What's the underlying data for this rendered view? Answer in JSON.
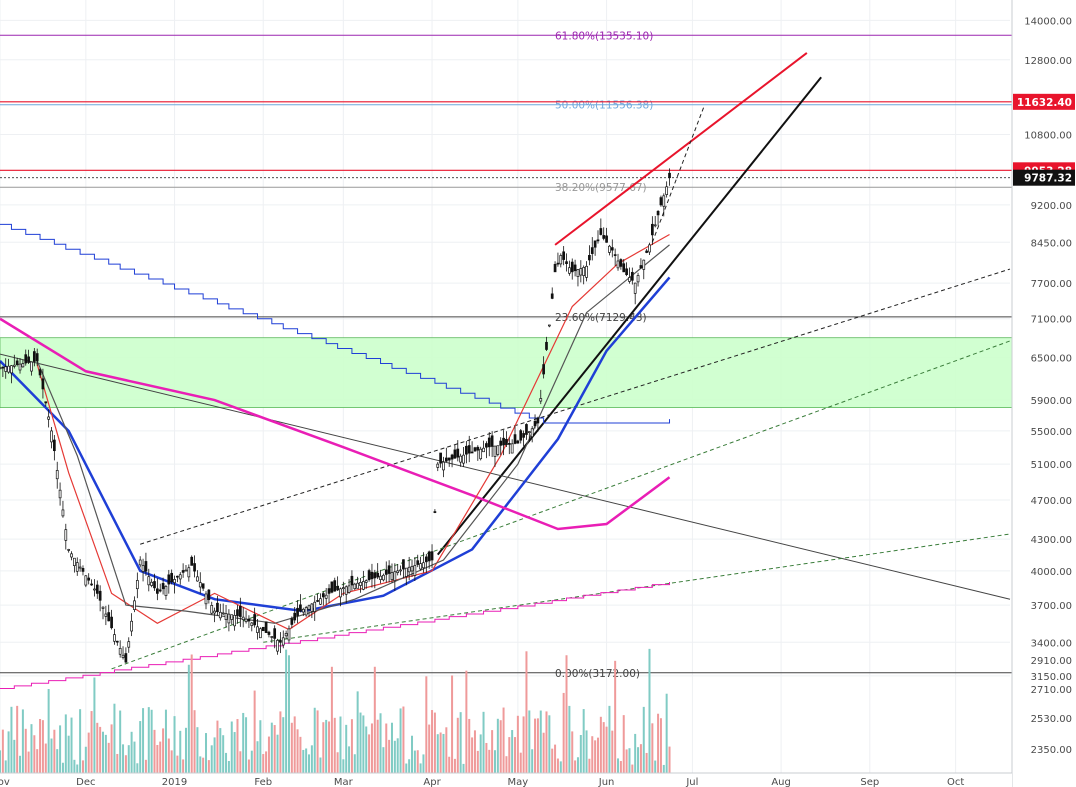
{
  "chart_data": {
    "type": "candlestick",
    "instrument": "BTC",
    "y_axis": {
      "ticks": [
        "14000.00",
        "12800.00",
        "11632.40",
        "10800.00",
        "9953.28",
        "9200.00",
        "8450.00",
        "7700.00",
        "7100.00",
        "6500.00",
        "5900.00",
        "5500.00",
        "5100.00",
        "4700.00",
        "4300.00",
        "4000.00",
        "3700.00",
        "3400.00",
        "3150.00",
        "2910.00",
        "2710.00",
        "2530.00",
        "2350.00"
      ],
      "tick_values": [
        14000,
        12800,
        10800,
        9200,
        8450,
        7700,
        7100,
        6500,
        5900,
        5500,
        5100,
        4700,
        4300,
        4000,
        3700,
        3400,
        3150
      ],
      "volume_tick_labels": [
        "2910.00",
        "2710.00",
        "2530.00",
        "2350.00"
      ],
      "range": [
        3050,
        14500
      ],
      "scale": "log"
    },
    "x_axis": {
      "labels": [
        "Nov",
        "Dec",
        "2019",
        "Feb",
        "Mar",
        "Apr",
        "May",
        "Jun",
        "Jul",
        "Aug",
        "Sep",
        "Oct"
      ],
      "date_range": [
        "2018-11-01",
        "2019-10-20"
      ]
    },
    "price_tags": [
      {
        "value": "11632.40",
        "color": "#e8142c"
      },
      {
        "value": "9953.28",
        "color": "#e8142c"
      },
      {
        "value": "9787.32",
        "color": "#111111"
      }
    ],
    "fibonacci_levels": [
      {
        "label": "61.80%(13535.10)",
        "ratio": 0.618,
        "price": 13535.1,
        "color": "#9c27b0"
      },
      {
        "label": "50.00%(11556.38)",
        "ratio": 0.5,
        "price": 11556.38,
        "color": "#6fa8dc"
      },
      {
        "label": "38.20%(9577.67)",
        "ratio": 0.382,
        "price": 9577.67,
        "color": "#999999"
      },
      {
        "label": "23.60%(7129.43)",
        "ratio": 0.236,
        "price": 7129.43,
        "color": "#444444"
      },
      {
        "label": "0.00%(3172.00)",
        "ratio": 0.0,
        "price": 3172.0,
        "color": "#444444"
      }
    ],
    "horizontal_lines": [
      {
        "price": 11632.4,
        "color": "#e8142c"
      },
      {
        "price": 9953.28,
        "color": "#e8142c"
      }
    ],
    "zone": {
      "from": 5800,
      "to": 6800,
      "color": "#ccffcc"
    },
    "price_path": [
      [
        "2018-11-01",
        6350
      ],
      [
        "2018-11-14",
        6450
      ],
      [
        "2018-11-19",
        5500
      ],
      [
        "2018-11-25",
        4200
      ],
      [
        "2018-12-05",
        3800
      ],
      [
        "2018-12-15",
        3250
      ],
      [
        "2018-12-20",
        4100
      ],
      [
        "2018-12-26",
        3800
      ],
      [
        "2019-01-07",
        4050
      ],
      [
        "2019-01-15",
        3650
      ],
      [
        "2019-01-25",
        3600
      ],
      [
        "2019-02-07",
        3400
      ],
      [
        "2019-02-14",
        3650
      ],
      [
        "2019-02-24",
        3800
      ],
      [
        "2019-03-01",
        3850
      ],
      [
        "2019-03-20",
        4000
      ],
      [
        "2019-04-01",
        4100
      ],
      [
        "2019-04-03",
        5100
      ],
      [
        "2019-04-20",
        5300
      ],
      [
        "2019-05-01",
        5350
      ],
      [
        "2019-05-08",
        5600
      ],
      [
        "2019-05-12",
        7000
      ],
      [
        "2019-05-14",
        7900
      ],
      [
        "2019-05-16",
        8200
      ],
      [
        "2019-05-20",
        7900
      ],
      [
        "2019-05-25",
        8000
      ],
      [
        "2019-05-30",
        8600
      ],
      [
        "2019-06-03",
        8300
      ],
      [
        "2019-06-07",
        7900
      ],
      [
        "2019-06-11",
        7700
      ],
      [
        "2019-06-16",
        8400
      ],
      [
        "2019-06-20",
        9200
      ],
      [
        "2019-06-23",
        9787
      ]
    ],
    "moving_averages": [
      {
        "color": "#1f3fd6",
        "points": [
          [
            "2018-11-01",
            6450
          ],
          [
            "2018-11-25",
            5500
          ],
          [
            "2018-12-20",
            4000
          ],
          [
            "2019-01-15",
            3750
          ],
          [
            "2019-02-15",
            3650
          ],
          [
            "2019-03-15",
            3780
          ],
          [
            "2019-04-15",
            4200
          ],
          [
            "2019-05-15",
            5400
          ],
          [
            "2019-06-01",
            6600
          ],
          [
            "2019-06-23",
            7800
          ]
        ]
      },
      {
        "color": "#e91eb5",
        "points": [
          [
            "2018-11-01",
            7100
          ],
          [
            "2018-12-01",
            6300
          ],
          [
            "2019-01-15",
            5900
          ],
          [
            "2019-03-01",
            5300
          ],
          [
            "2019-04-15",
            4750
          ],
          [
            "2019-05-15",
            4400
          ],
          [
            "2019-06-01",
            4450
          ],
          [
            "2019-06-23",
            4950
          ]
        ]
      },
      {
        "color": "#e53935",
        "points": [
          [
            "2018-11-14",
            6400
          ],
          [
            "2018-11-25",
            5000
          ],
          [
            "2018-12-10",
            3800
          ],
          [
            "2018-12-26",
            3550
          ],
          [
            "2019-01-15",
            3800
          ],
          [
            "2019-02-10",
            3500
          ],
          [
            "2019-03-01",
            3800
          ],
          [
            "2019-04-01",
            4000
          ],
          [
            "2019-04-25",
            5200
          ],
          [
            "2019-05-20",
            7300
          ],
          [
            "2019-06-05",
            8050
          ],
          [
            "2019-06-23",
            8600
          ]
        ]
      },
      {
        "color": "#555555",
        "points": [
          [
            "2018-11-14",
            6450
          ],
          [
            "2018-11-28",
            5200
          ],
          [
            "2018-12-15",
            3700
          ],
          [
            "2019-01-05",
            3650
          ],
          [
            "2019-02-05",
            3550
          ],
          [
            "2019-03-05",
            3750
          ],
          [
            "2019-04-05",
            4100
          ],
          [
            "2019-05-01",
            5100
          ],
          [
            "2019-05-25",
            7200
          ],
          [
            "2019-06-23",
            8400
          ]
        ]
      }
    ],
    "trend_lines": [
      {
        "color": "#e8142c",
        "from": [
          "2019-05-14",
          8400
        ],
        "to": [
          "2019-08-10",
          13000
        ]
      },
      {
        "color": "#111111",
        "from": [
          "2019-04-03",
          4150
        ],
        "to": [
          "2019-08-15",
          12300
        ]
      },
      {
        "color": "#444444",
        "from": [
          "2018-11-01",
          6550
        ],
        "to": [
          "2019-10-20",
          3750
        ]
      }
    ],
    "volume": {
      "visible": true,
      "bars_up_color": "#80cbc4",
      "bars_down_color": "#ef9a9a"
    }
  }
}
